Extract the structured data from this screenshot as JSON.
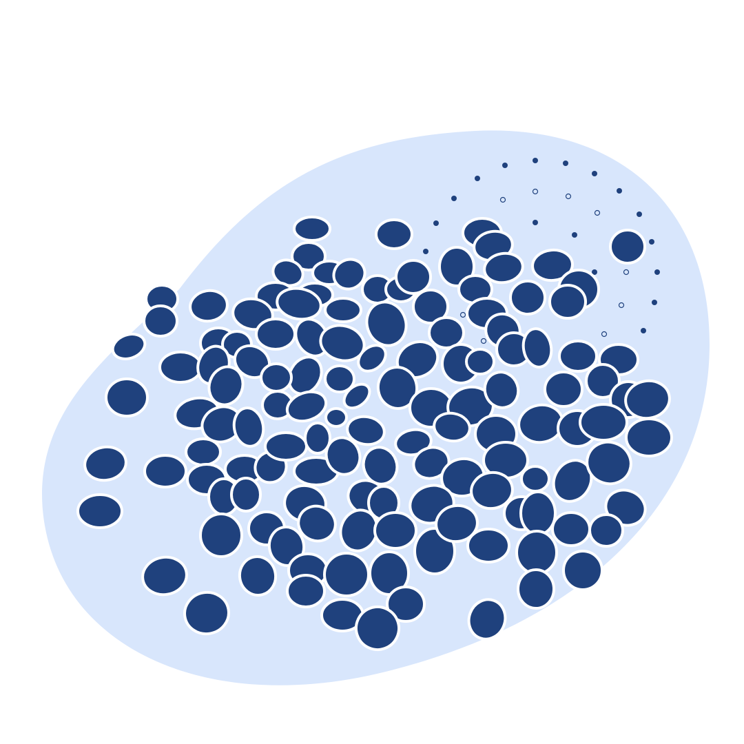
{
  "illustration": {
    "colors": {
      "background": "#ffffff",
      "blob": "#d8e6fc",
      "cell_fill": "#1f417d",
      "cell_stroke": "#ffffff",
      "dot": "#1f417d"
    }
  }
}
